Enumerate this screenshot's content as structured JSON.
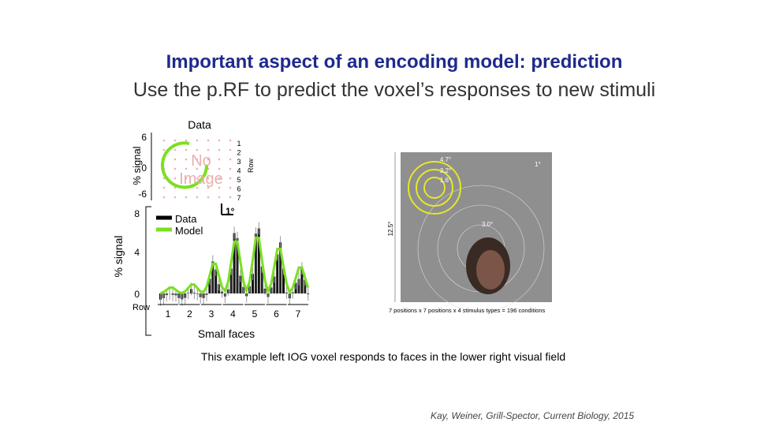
{
  "slide": {
    "title": "Important aspect of an encoding model: prediction",
    "subtitle": "Use the p.RF to predict the voxel’s responses to new stimuli",
    "top_panel": {
      "title": "Data",
      "ylabel": "% signal",
      "yticks": [
        "6",
        "0",
        "-6"
      ],
      "row_label": "Row",
      "rows": [
        "1",
        "2",
        "3",
        "4",
        "5",
        "6",
        "7"
      ],
      "placeholder": [
        "No",
        "Image"
      ]
    },
    "bottom_panel": {
      "ylabel": "% signal",
      "yticks": [
        "8",
        "4",
        "0"
      ],
      "row_label": "Row",
      "rows": [
        "1",
        "2",
        "3",
        "4",
        "5",
        "6",
        "7"
      ],
      "legend": [
        "Data",
        "Model"
      ],
      "scale_label": "1°",
      "xlabel": "Small faces"
    },
    "stimulus": {
      "labels": [
        "4.7°",
        "3.2°",
        "1.6°",
        "1°",
        "3.0°",
        "12.5°"
      ],
      "caption": "7 positions x 7 positions x 4 stimulus types = 196 conditions"
    },
    "caption": "This example left IOG voxel responds to faces in the lower right visual field",
    "citation": "Kay, Weiner, Grill-Spector, Current Biology, 2015"
  }
}
